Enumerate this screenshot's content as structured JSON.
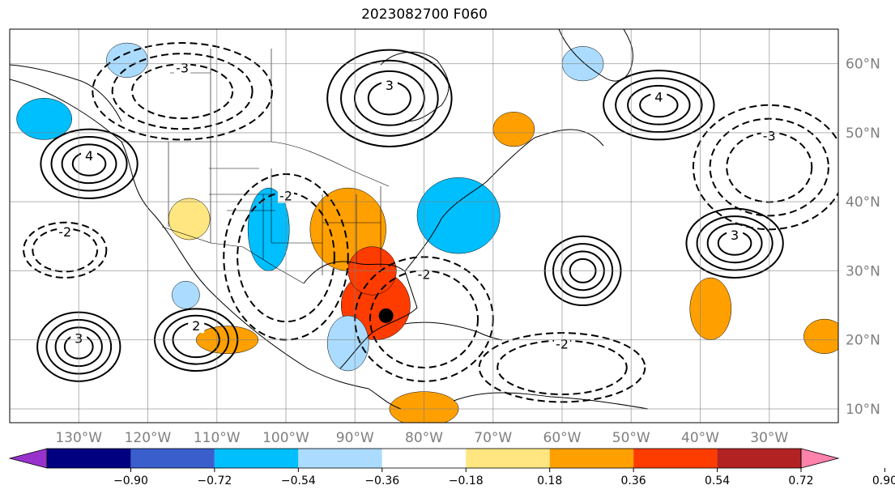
{
  "title": "2023082700 F060",
  "map": {
    "lon_range": [
      -140,
      -20
    ],
    "lat_range": [
      8,
      65
    ],
    "lon_ticks": [
      {
        "value": -130,
        "label": "130°W"
      },
      {
        "value": -120,
        "label": "120°W"
      },
      {
        "value": -110,
        "label": "110°W"
      },
      {
        "value": -100,
        "label": "100°W"
      },
      {
        "value": -90,
        "label": "90°W"
      },
      {
        "value": -80,
        "label": "80°W"
      },
      {
        "value": -70,
        "label": "70°W"
      },
      {
        "value": -60,
        "label": "60°W"
      },
      {
        "value": -50,
        "label": "50°W"
      },
      {
        "value": -40,
        "label": "40°W"
      },
      {
        "value": -30,
        "label": "30°W"
      }
    ],
    "lat_ticks": [
      {
        "value": 10,
        "label": "10°N"
      },
      {
        "value": 20,
        "label": "20°N"
      },
      {
        "value": 30,
        "label": "30°N"
      },
      {
        "value": 40,
        "label": "40°N"
      },
      {
        "value": 50,
        "label": "50°N"
      },
      {
        "value": 60,
        "label": "60°N"
      }
    ],
    "gridlines": true,
    "marker": {
      "name": "storm-center-marker",
      "lon": -85.5,
      "lat": 23.5,
      "color": "#000000"
    }
  },
  "colorbar": {
    "ticks": [
      "−0.90",
      "−0.72",
      "−0.54",
      "−0.36",
      "−0.18",
      "0.18",
      "0.36",
      "0.54",
      "0.72",
      "0.90"
    ],
    "colors": [
      "#9932cc",
      "#000080",
      "#3a5fcd",
      "#00bfff",
      "#abdcff",
      "#ffffff",
      "#ffe680",
      "#ffa000",
      "#ff3c00",
      "#b22222",
      "#ff82ab"
    ]
  },
  "shading": [
    {
      "name": "positive-anomaly-gulf",
      "lon": -87,
      "lat": 25,
      "rx": 5,
      "ry": 5,
      "color": "#ff3c00"
    },
    {
      "name": "positive-anomaly-plains",
      "lon": -91,
      "lat": 36,
      "rx": 5.5,
      "ry": 6,
      "color": "#ffa000"
    },
    {
      "name": "positive-anomaly-plains-core",
      "lon": -87.5,
      "lat": 30,
      "rx": 3.5,
      "ry": 3.5,
      "color": "#ff3c00"
    },
    {
      "name": "positive-anomaly-hudson",
      "lon": -67,
      "lat": 50.5,
      "rx": 3,
      "ry": 2.5,
      "color": "#ffa000"
    },
    {
      "name": "positive-anomaly-mexico",
      "lon": -108.5,
      "lat": 20,
      "rx": 4.5,
      "ry": 2,
      "color": "#ffa000"
    },
    {
      "name": "positive-anomaly-atlantic-east",
      "lon": -38.5,
      "lat": 24.5,
      "rx": 3,
      "ry": 4.5,
      "color": "#ffa000"
    },
    {
      "name": "positive-anomaly-central-america",
      "lon": -80,
      "lat": 10,
      "rx": 5,
      "ry": 2.5,
      "color": "#ffa000"
    },
    {
      "name": "positive-anomaly-west-coast",
      "lon": -114,
      "lat": 37.5,
      "rx": 3,
      "ry": 3,
      "color": "#ffe680"
    },
    {
      "name": "positive-anomaly-far-east",
      "lon": -22,
      "lat": 20.5,
      "rx": 3,
      "ry": 2.5,
      "color": "#ffa000"
    },
    {
      "name": "negative-anomaly-east-coast",
      "lon": -75,
      "lat": 38,
      "rx": 6,
      "ry": 5.5,
      "color": "#00bfff"
    },
    {
      "name": "negative-anomaly-rockies",
      "lon": -102.5,
      "lat": 36,
      "rx": 3,
      "ry": 6,
      "color": "#00bfff"
    },
    {
      "name": "negative-anomaly-alaska",
      "lon": -135,
      "lat": 52,
      "rx": 4,
      "ry": 3,
      "color": "#00bfff"
    },
    {
      "name": "negative-anomaly-canada-north",
      "lon": -123,
      "lat": 60.5,
      "rx": 3,
      "ry": 2.5,
      "color": "#abdcff"
    },
    {
      "name": "negative-anomaly-labrador",
      "lon": -57,
      "lat": 60,
      "rx": 3,
      "ry": 2.5,
      "color": "#abdcff"
    },
    {
      "name": "negative-anomaly-yucatan",
      "lon": -91,
      "lat": 19.5,
      "rx": 3,
      "ry": 4,
      "color": "#abdcff"
    },
    {
      "name": "negative-anomaly-baja",
      "lon": -114.5,
      "lat": 26.5,
      "rx": 2,
      "ry": 2,
      "color": "#abdcff"
    }
  ],
  "contours": [
    {
      "name": "high-pressure-pacific",
      "lon": -128.5,
      "lat": 45.5,
      "rx": 7,
      "ry": 5,
      "rings": 4,
      "dashed": false,
      "label": "4"
    },
    {
      "name": "high-pressure-hudson-bay",
      "lon": -85,
      "lat": 55,
      "rx": 9,
      "ry": 7,
      "rings": 4,
      "dashed": false,
      "label": "3"
    },
    {
      "name": "high-pressure-north-atlantic",
      "lon": -46,
      "lat": 54,
      "rx": 8,
      "ry": 5,
      "rings": 4,
      "dashed": false,
      "label": "4"
    },
    {
      "name": "high-pressure-central-atlantic",
      "lon": -57,
      "lat": 30,
      "rx": 5.5,
      "ry": 5,
      "rings": 4,
      "dashed": false,
      "label": ""
    },
    {
      "name": "high-pressure-east-atlantic",
      "lon": -35,
      "lat": 34,
      "rx": 7,
      "ry": 5,
      "rings": 4,
      "dashed": false,
      "label": "3"
    },
    {
      "name": "high-pressure-east-pacific",
      "lon": -130,
      "lat": 19,
      "rx": 6,
      "ry": 5,
      "rings": 4,
      "dashed": false,
      "label": "3"
    },
    {
      "name": "high-pressure-mexico-coast",
      "lon": -113,
      "lat": 20,
      "rx": 6,
      "ry": 4.5,
      "rings": 3,
      "dashed": false,
      "label": "2"
    },
    {
      "name": "low-pressure-north-pacific",
      "lon": -115,
      "lat": 56,
      "rx": 13,
      "ry": 7,
      "rings": 3,
      "dashed": true,
      "label": "-3"
    },
    {
      "name": "low-pressure-atlantic-north",
      "lon": -30,
      "lat": 45,
      "rx": 11,
      "ry": 9,
      "rings": 3,
      "dashed": true,
      "label": "-3"
    },
    {
      "name": "low-pressure-us-plains",
      "lon": -100,
      "lat": 32,
      "rx": 9,
      "ry": 12,
      "rings": 2,
      "dashed": true,
      "label": "-2"
    },
    {
      "name": "low-pressure-gulf",
      "lon": -80,
      "lat": 23,
      "rx": 10,
      "ry": 9,
      "rings": 2,
      "dashed": true,
      "label": "-2"
    },
    {
      "name": "low-pressure-caribbean",
      "lon": -60,
      "lat": 16,
      "rx": 12,
      "ry": 5,
      "rings": 2,
      "dashed": true,
      "label": "-2"
    },
    {
      "name": "low-pressure-west-pacific",
      "lon": -132,
      "lat": 33,
      "rx": 6,
      "ry": 4,
      "rings": 2,
      "dashed": true,
      "label": "-2"
    }
  ]
}
